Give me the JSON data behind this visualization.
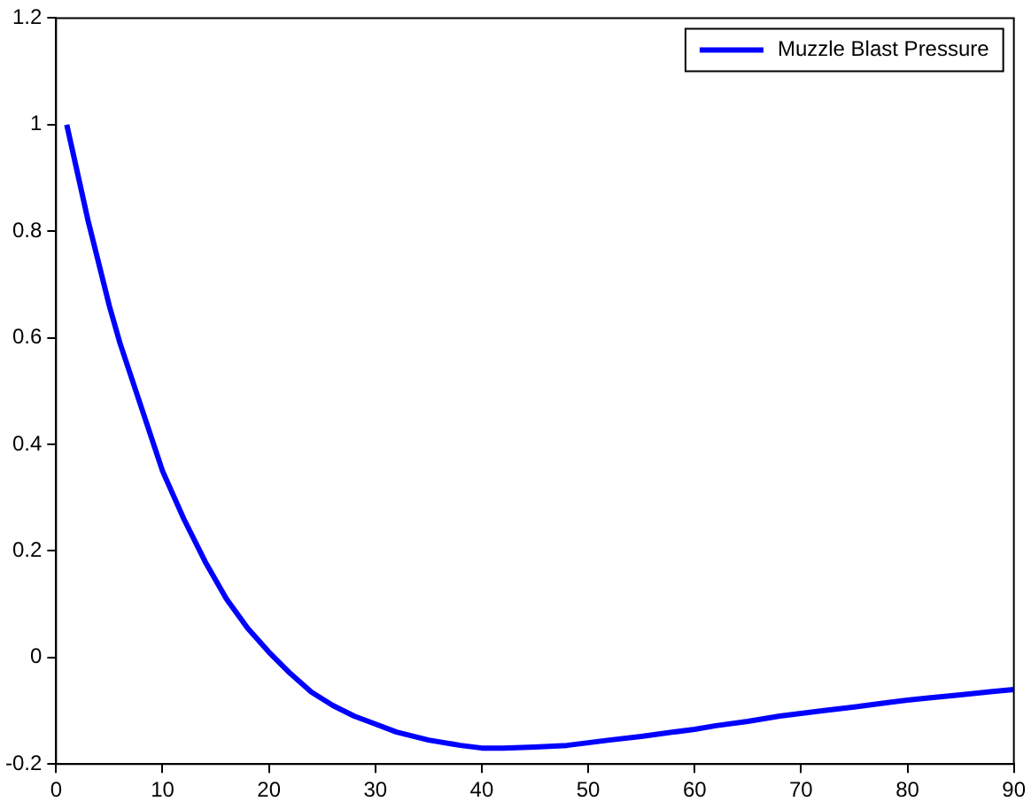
{
  "chart_data": {
    "type": "line",
    "x": [
      1,
      2,
      3,
      4,
      5,
      6,
      8,
      10,
      12,
      14,
      16,
      18,
      20,
      22,
      24,
      26,
      28,
      30,
      32,
      35,
      38,
      40,
      42,
      45,
      48,
      50,
      52,
      55,
      58,
      60,
      62,
      65,
      68,
      70,
      72,
      75,
      78,
      80,
      82,
      85,
      88,
      90
    ],
    "series": [
      {
        "name": "Muzzle Blast Pressure",
        "color": "#0000ff",
        "values": [
          1.0,
          0.91,
          0.82,
          0.74,
          0.66,
          0.59,
          0.47,
          0.35,
          0.26,
          0.18,
          0.11,
          0.055,
          0.01,
          -0.03,
          -0.065,
          -0.09,
          -0.11,
          -0.125,
          -0.14,
          -0.155,
          -0.165,
          -0.17,
          -0.17,
          -0.168,
          -0.165,
          -0.16,
          -0.155,
          -0.148,
          -0.14,
          -0.135,
          -0.128,
          -0.12,
          -0.11,
          -0.105,
          -0.1,
          -0.093,
          -0.085,
          -0.08,
          -0.076,
          -0.07,
          -0.064,
          -0.06
        ]
      }
    ],
    "xlim": [
      0,
      90
    ],
    "xticks": [
      0,
      10,
      20,
      30,
      40,
      50,
      60,
      70,
      80,
      90
    ],
    "ylim": [
      -0.2,
      1.2
    ],
    "yticks": [
      -0.2,
      0,
      0.2,
      0.4,
      0.6,
      0.8,
      1,
      1.2
    ],
    "grid": false,
    "legend": "top right",
    "marker": "none",
    "line_style": "solid"
  }
}
